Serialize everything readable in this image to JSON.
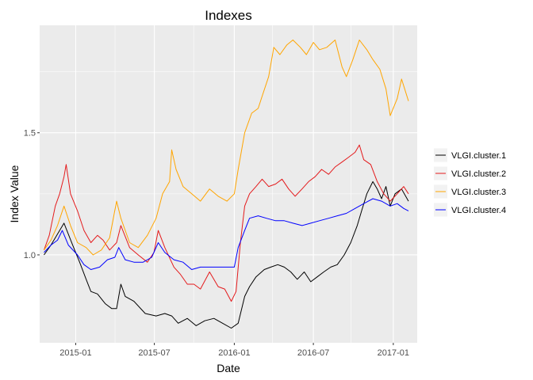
{
  "chart_data": {
    "type": "line",
    "title": "Indexes",
    "xlabel": "Date",
    "ylabel": "Index Value",
    "x_ticks": [
      "2015-01",
      "2015-07",
      "2016-01",
      "2016-07",
      "2017-01"
    ],
    "y_ticks": [
      "1.0",
      "1.5"
    ],
    "xlim": [
      "2014-10-10",
      "2017-02-25"
    ],
    "ylim": [
      0.64,
      1.94
    ],
    "grid": true,
    "legend_position": "right",
    "series": [
      {
        "name": "VLGI.cluster.1",
        "color": "#000000",
        "points": [
          [
            "2014-10-20",
            1.0
          ],
          [
            "2014-11-05",
            1.04
          ],
          [
            "2014-11-25",
            1.1
          ],
          [
            "2014-12-05",
            1.13
          ],
          [
            "2014-12-25",
            1.04
          ],
          [
            "2015-01-10",
            0.97
          ],
          [
            "2015-01-25",
            0.9
          ],
          [
            "2015-02-05",
            0.85
          ],
          [
            "2015-02-20",
            0.84
          ],
          [
            "2015-03-10",
            0.8
          ],
          [
            "2015-03-25",
            0.78
          ],
          [
            "2015-04-05",
            0.78
          ],
          [
            "2015-04-15",
            0.88
          ],
          [
            "2015-04-25",
            0.83
          ],
          [
            "2015-05-15",
            0.81
          ],
          [
            "2015-06-10",
            0.76
          ],
          [
            "2015-07-05",
            0.75
          ],
          [
            "2015-07-25",
            0.76
          ],
          [
            "2015-08-10",
            0.75
          ],
          [
            "2015-08-25",
            0.72
          ],
          [
            "2015-09-15",
            0.74
          ],
          [
            "2015-10-05",
            0.71
          ],
          [
            "2015-10-25",
            0.73
          ],
          [
            "2015-11-15",
            0.74
          ],
          [
            "2015-12-05",
            0.72
          ],
          [
            "2015-12-25",
            0.7
          ],
          [
            "2016-01-10",
            0.72
          ],
          [
            "2016-01-25",
            0.83
          ],
          [
            "2016-02-05",
            0.87
          ],
          [
            "2016-02-20",
            0.91
          ],
          [
            "2016-03-10",
            0.94
          ],
          [
            "2016-03-25",
            0.95
          ],
          [
            "2016-04-10",
            0.96
          ],
          [
            "2016-04-25",
            0.95
          ],
          [
            "2016-05-10",
            0.93
          ],
          [
            "2016-05-25",
            0.9
          ],
          [
            "2016-06-10",
            0.93
          ],
          [
            "2016-06-25",
            0.89
          ],
          [
            "2016-07-10",
            0.91
          ],
          [
            "2016-07-25",
            0.93
          ],
          [
            "2016-08-10",
            0.95
          ],
          [
            "2016-08-25",
            0.96
          ],
          [
            "2016-09-10",
            1.0
          ],
          [
            "2016-09-25",
            1.05
          ],
          [
            "2016-10-10",
            1.12
          ],
          [
            "2016-10-20",
            1.18
          ],
          [
            "2016-11-01",
            1.25
          ],
          [
            "2016-11-15",
            1.3
          ],
          [
            "2016-11-25",
            1.27
          ],
          [
            "2016-12-05",
            1.23
          ],
          [
            "2016-12-15",
            1.28
          ],
          [
            "2016-12-25",
            1.2
          ],
          [
            "2017-01-05",
            1.25
          ],
          [
            "2017-01-20",
            1.27
          ],
          [
            "2017-02-05",
            1.22
          ]
        ]
      },
      {
        "name": "VLGI.cluster.2",
        "color": "#E41A1C",
        "points": [
          [
            "2014-10-20",
            1.02
          ],
          [
            "2014-11-01",
            1.08
          ],
          [
            "2014-11-15",
            1.2
          ],
          [
            "2014-11-25",
            1.25
          ],
          [
            "2014-12-05",
            1.32
          ],
          [
            "2014-12-10",
            1.37
          ],
          [
            "2014-12-20",
            1.25
          ],
          [
            "2015-01-05",
            1.18
          ],
          [
            "2015-01-20",
            1.1
          ],
          [
            "2015-02-05",
            1.05
          ],
          [
            "2015-02-20",
            1.08
          ],
          [
            "2015-03-05",
            1.06
          ],
          [
            "2015-03-20",
            1.02
          ],
          [
            "2015-04-05",
            1.05
          ],
          [
            "2015-04-15",
            1.12
          ],
          [
            "2015-05-05",
            1.03
          ],
          [
            "2015-05-25",
            1.0
          ],
          [
            "2015-06-15",
            0.97
          ],
          [
            "2015-06-30",
            1.01
          ],
          [
            "2015-07-10",
            1.1
          ],
          [
            "2015-07-25",
            1.03
          ],
          [
            "2015-08-15",
            0.95
          ],
          [
            "2015-08-30",
            0.92
          ],
          [
            "2015-09-15",
            0.88
          ],
          [
            "2015-09-30",
            0.88
          ],
          [
            "2015-10-15",
            0.86
          ],
          [
            "2015-11-05",
            0.93
          ],
          [
            "2015-11-25",
            0.87
          ],
          [
            "2015-12-10",
            0.86
          ],
          [
            "2015-12-25",
            0.81
          ],
          [
            "2016-01-05",
            0.85
          ],
          [
            "2016-01-15",
            1.05
          ],
          [
            "2016-01-25",
            1.2
          ],
          [
            "2016-02-05",
            1.25
          ],
          [
            "2016-02-20",
            1.28
          ],
          [
            "2016-03-05",
            1.31
          ],
          [
            "2016-03-20",
            1.28
          ],
          [
            "2016-04-05",
            1.29
          ],
          [
            "2016-04-20",
            1.31
          ],
          [
            "2016-05-05",
            1.27
          ],
          [
            "2016-05-20",
            1.24
          ],
          [
            "2016-06-05",
            1.27
          ],
          [
            "2016-06-20",
            1.3
          ],
          [
            "2016-07-05",
            1.32
          ],
          [
            "2016-07-20",
            1.35
          ],
          [
            "2016-08-05",
            1.33
          ],
          [
            "2016-08-20",
            1.36
          ],
          [
            "2016-09-05",
            1.38
          ],
          [
            "2016-09-20",
            1.4
          ],
          [
            "2016-10-05",
            1.42
          ],
          [
            "2016-10-15",
            1.45
          ],
          [
            "2016-10-25",
            1.39
          ],
          [
            "2016-11-10",
            1.37
          ],
          [
            "2016-11-25",
            1.3
          ],
          [
            "2016-12-10",
            1.25
          ],
          [
            "2016-12-25",
            1.22
          ],
          [
            "2017-01-10",
            1.25
          ],
          [
            "2017-01-25",
            1.28
          ],
          [
            "2017-02-05",
            1.25
          ]
        ]
      },
      {
        "name": "VLGI.cluster.3",
        "color": "#FFA500",
        "points": [
          [
            "2014-10-20",
            1.02
          ],
          [
            "2014-11-05",
            1.06
          ],
          [
            "2014-11-20",
            1.12
          ],
          [
            "2014-12-05",
            1.2
          ],
          [
            "2014-12-20",
            1.12
          ],
          [
            "2015-01-05",
            1.05
          ],
          [
            "2015-01-25",
            1.03
          ],
          [
            "2015-02-10",
            1.0
          ],
          [
            "2015-03-01",
            1.02
          ],
          [
            "2015-03-20",
            1.07
          ],
          [
            "2015-04-05",
            1.22
          ],
          [
            "2015-04-15",
            1.15
          ],
          [
            "2015-05-05",
            1.05
          ],
          [
            "2015-05-25",
            1.03
          ],
          [
            "2015-06-15",
            1.08
          ],
          [
            "2015-07-05",
            1.15
          ],
          [
            "2015-07-20",
            1.25
          ],
          [
            "2015-08-05",
            1.3
          ],
          [
            "2015-08-10",
            1.43
          ],
          [
            "2015-08-20",
            1.35
          ],
          [
            "2015-09-05",
            1.28
          ],
          [
            "2015-09-25",
            1.25
          ],
          [
            "2015-10-15",
            1.22
          ],
          [
            "2015-11-05",
            1.27
          ],
          [
            "2015-11-25",
            1.24
          ],
          [
            "2015-12-15",
            1.22
          ],
          [
            "2016-01-01",
            1.25
          ],
          [
            "2016-01-10",
            1.35
          ],
          [
            "2016-01-25",
            1.5
          ],
          [
            "2016-02-10",
            1.58
          ],
          [
            "2016-02-25",
            1.6
          ],
          [
            "2016-03-05",
            1.65
          ],
          [
            "2016-03-20",
            1.73
          ],
          [
            "2016-04-01",
            1.85
          ],
          [
            "2016-04-15",
            1.82
          ],
          [
            "2016-05-01",
            1.86
          ],
          [
            "2016-05-15",
            1.88
          ],
          [
            "2016-06-01",
            1.85
          ],
          [
            "2016-06-15",
            1.82
          ],
          [
            "2016-07-01",
            1.87
          ],
          [
            "2016-07-15",
            1.84
          ],
          [
            "2016-08-01",
            1.85
          ],
          [
            "2016-08-20",
            1.88
          ],
          [
            "2016-09-05",
            1.77
          ],
          [
            "2016-09-15",
            1.73
          ],
          [
            "2016-09-30",
            1.8
          ],
          [
            "2016-10-15",
            1.88
          ],
          [
            "2016-11-01",
            1.84
          ],
          [
            "2016-11-15",
            1.8
          ],
          [
            "2016-12-01",
            1.76
          ],
          [
            "2016-12-15",
            1.68
          ],
          [
            "2016-12-25",
            1.57
          ],
          [
            "2017-01-10",
            1.64
          ],
          [
            "2017-01-20",
            1.72
          ],
          [
            "2017-02-05",
            1.63
          ]
        ]
      },
      {
        "name": "VLGI.cluster.4",
        "color": "#0000FF",
        "points": [
          [
            "2014-10-20",
            1.01
          ],
          [
            "2014-11-05",
            1.04
          ],
          [
            "2014-11-20",
            1.06
          ],
          [
            "2014-12-01",
            1.1
          ],
          [
            "2014-12-15",
            1.04
          ],
          [
            "2015-01-05",
            1.0
          ],
          [
            "2015-01-20",
            0.96
          ],
          [
            "2015-02-05",
            0.94
          ],
          [
            "2015-02-25",
            0.95
          ],
          [
            "2015-03-15",
            0.98
          ],
          [
            "2015-04-01",
            0.99
          ],
          [
            "2015-04-10",
            1.03
          ],
          [
            "2015-04-25",
            0.98
          ],
          [
            "2015-05-15",
            0.97
          ],
          [
            "2015-06-05",
            0.97
          ],
          [
            "2015-06-25",
            0.99
          ],
          [
            "2015-07-10",
            1.05
          ],
          [
            "2015-07-25",
            1.01
          ],
          [
            "2015-08-15",
            0.98
          ],
          [
            "2015-09-05",
            0.97
          ],
          [
            "2015-09-25",
            0.94
          ],
          [
            "2015-10-15",
            0.95
          ],
          [
            "2015-11-05",
            0.95
          ],
          [
            "2015-11-25",
            0.95
          ],
          [
            "2015-12-15",
            0.95
          ],
          [
            "2016-01-01",
            0.95
          ],
          [
            "2016-01-10",
            1.03
          ],
          [
            "2016-01-25",
            1.1
          ],
          [
            "2016-02-05",
            1.15
          ],
          [
            "2016-02-25",
            1.16
          ],
          [
            "2016-03-15",
            1.15
          ],
          [
            "2016-04-05",
            1.14
          ],
          [
            "2016-04-25",
            1.14
          ],
          [
            "2016-05-15",
            1.13
          ],
          [
            "2016-06-05",
            1.12
          ],
          [
            "2016-06-25",
            1.13
          ],
          [
            "2016-07-15",
            1.14
          ],
          [
            "2016-08-05",
            1.15
          ],
          [
            "2016-08-25",
            1.16
          ],
          [
            "2016-09-15",
            1.17
          ],
          [
            "2016-10-05",
            1.19
          ],
          [
            "2016-10-25",
            1.21
          ],
          [
            "2016-11-15",
            1.23
          ],
          [
            "2016-12-05",
            1.22
          ],
          [
            "2016-12-25",
            1.2
          ],
          [
            "2017-01-10",
            1.21
          ],
          [
            "2017-01-25",
            1.19
          ],
          [
            "2017-02-05",
            1.18
          ]
        ]
      }
    ]
  }
}
